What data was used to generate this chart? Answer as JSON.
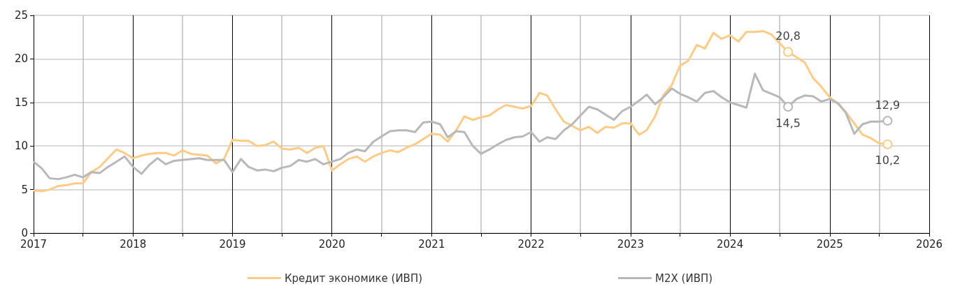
{
  "chart_data": {
    "type": "line",
    "x": [
      "2017-01",
      "2017-02",
      "2017-03",
      "2017-04",
      "2017-05",
      "2017-06",
      "2017-07",
      "2017-08",
      "2017-09",
      "2017-10",
      "2017-11",
      "2017-12",
      "2018-01",
      "2018-02",
      "2018-03",
      "2018-04",
      "2018-05",
      "2018-06",
      "2018-07",
      "2018-08",
      "2018-09",
      "2018-10",
      "2018-11",
      "2018-12",
      "2019-01",
      "2019-02",
      "2019-03",
      "2019-04",
      "2019-05",
      "2019-06",
      "2019-07",
      "2019-08",
      "2019-09",
      "2019-10",
      "2019-11",
      "2019-12",
      "2020-01",
      "2020-02",
      "2020-03",
      "2020-04",
      "2020-05",
      "2020-06",
      "2020-07",
      "2020-08",
      "2020-09",
      "2020-10",
      "2020-11",
      "2020-12",
      "2021-01",
      "2021-02",
      "2021-03",
      "2021-04",
      "2021-05",
      "2021-06",
      "2021-07",
      "2021-08",
      "2021-09",
      "2021-10",
      "2021-11",
      "2021-12",
      "2022-01",
      "2022-02",
      "2022-03",
      "2022-04",
      "2022-05",
      "2022-06",
      "2022-07",
      "2022-08",
      "2022-09",
      "2022-10",
      "2022-11",
      "2022-12",
      "2023-01",
      "2023-02",
      "2023-03",
      "2023-04",
      "2023-05",
      "2023-06",
      "2023-07",
      "2023-08",
      "2023-09",
      "2023-10",
      "2023-11",
      "2023-12",
      "2024-01",
      "2024-02",
      "2024-03",
      "2024-04",
      "2024-05",
      "2024-06",
      "2024-07",
      "2024-08",
      "2024-09",
      "2024-10",
      "2024-11",
      "2024-12",
      "2025-01",
      "2025-02",
      "2025-03",
      "2025-04",
      "2025-05",
      "2025-06",
      "2025-07",
      "2025-08"
    ],
    "series": [
      {
        "name": "Кредит экономике (ИВП)",
        "color": "#fecb84",
        "values": [
          4.9,
          4.8,
          5.0,
          5.4,
          5.5,
          5.7,
          5.7,
          7.0,
          7.6,
          8.6,
          9.6,
          9.2,
          8.6,
          8.9,
          9.1,
          9.2,
          9.2,
          8.9,
          9.5,
          9.1,
          9.0,
          8.9,
          8.0,
          8.5,
          10.7,
          10.6,
          10.6,
          10.0,
          10.1,
          10.5,
          9.7,
          9.6,
          9.8,
          9.2,
          9.8,
          10.0,
          7.2,
          7.9,
          8.5,
          8.8,
          8.2,
          8.8,
          9.2,
          9.5,
          9.3,
          9.8,
          10.2,
          10.8,
          11.4,
          11.3,
          10.5,
          11.8,
          13.4,
          13.0,
          13.3,
          13.5,
          14.2,
          14.7,
          14.5,
          14.3,
          14.6,
          16.1,
          15.8,
          14.2,
          12.8,
          12.3,
          11.8,
          12.2,
          11.5,
          12.2,
          12.1,
          12.6,
          12.6,
          11.3,
          11.8,
          13.4,
          15.8,
          17.0,
          19.2,
          19.8,
          21.6,
          21.2,
          23.0,
          22.3,
          22.7,
          22.0,
          23.1,
          23.1,
          23.2,
          22.8,
          21.8,
          20.8,
          20.2,
          19.6,
          17.8,
          16.8,
          15.6,
          14.8,
          13.9,
          12.6,
          11.3,
          10.9,
          10.3,
          10.2
        ],
        "value_labels": [
          null,
          null,
          null,
          null,
          null,
          null,
          null,
          null,
          null,
          null,
          null,
          null,
          null,
          null,
          null,
          null,
          null,
          null,
          null,
          null,
          null,
          null,
          null,
          null,
          null,
          null,
          null,
          null,
          null,
          null,
          null,
          null,
          null,
          null,
          null,
          null,
          null,
          null,
          null,
          null,
          null,
          null,
          null,
          null,
          null,
          null,
          null,
          null,
          null,
          null,
          null,
          null,
          null,
          null,
          null,
          null,
          null,
          null,
          null,
          null,
          null,
          null,
          null,
          null,
          null,
          null,
          null,
          null,
          null,
          null,
          null,
          null,
          null,
          null,
          null,
          null,
          null,
          null,
          null,
          null,
          null,
          null,
          null,
          null,
          null,
          null,
          null,
          null,
          null,
          null,
          null,
          "20,8",
          null,
          null,
          null,
          null,
          null,
          null,
          null,
          null,
          null,
          null,
          null,
          "10,2"
        ]
      },
      {
        "name": "M2X (ИВП)",
        "color": "#b8b8b8",
        "values": [
          8.2,
          7.4,
          6.3,
          6.2,
          6.4,
          6.7,
          6.4,
          7.0,
          6.9,
          7.6,
          8.2,
          8.8,
          7.6,
          6.8,
          7.8,
          8.6,
          7.9,
          8.3,
          8.4,
          8.5,
          8.6,
          8.4,
          8.4,
          8.4,
          7.0,
          8.5,
          7.6,
          7.2,
          7.3,
          7.1,
          7.5,
          7.7,
          8.4,
          8.2,
          8.5,
          7.9,
          8.2,
          8.5,
          9.2,
          9.6,
          9.4,
          10.5,
          11.1,
          11.7,
          11.8,
          11.8,
          11.6,
          12.7,
          12.8,
          12.5,
          11.0,
          11.7,
          11.6,
          10.0,
          9.1,
          9.6,
          10.2,
          10.7,
          11.0,
          11.1,
          11.6,
          10.5,
          11.0,
          10.8,
          11.8,
          12.5,
          13.5,
          14.5,
          14.2,
          13.6,
          13.0,
          14.0,
          14.5,
          15.2,
          15.9,
          14.8,
          15.6,
          16.6,
          16.0,
          15.6,
          15.1,
          16.1,
          16.3,
          15.6,
          15.0,
          14.7,
          14.4,
          18.3,
          16.4,
          16.0,
          15.6,
          14.5,
          15.4,
          15.8,
          15.7,
          15.1,
          15.4,
          14.9,
          13.8,
          11.4,
          12.5,
          12.8,
          12.8,
          12.9
        ],
        "value_labels": [
          null,
          null,
          null,
          null,
          null,
          null,
          null,
          null,
          null,
          null,
          null,
          null,
          null,
          null,
          null,
          null,
          null,
          null,
          null,
          null,
          null,
          null,
          null,
          null,
          null,
          null,
          null,
          null,
          null,
          null,
          null,
          null,
          null,
          null,
          null,
          null,
          null,
          null,
          null,
          null,
          null,
          null,
          null,
          null,
          null,
          null,
          null,
          null,
          null,
          null,
          null,
          null,
          null,
          null,
          null,
          null,
          null,
          null,
          null,
          null,
          null,
          null,
          null,
          null,
          null,
          null,
          null,
          null,
          null,
          null,
          null,
          null,
          null,
          null,
          null,
          null,
          null,
          null,
          null,
          null,
          null,
          null,
          null,
          null,
          null,
          null,
          null,
          null,
          null,
          null,
          null,
          "14,5",
          null,
          null,
          null,
          null,
          null,
          null,
          null,
          null,
          null,
          null,
          null,
          "12,9"
        ]
      }
    ],
    "xlim": [
      "2017",
      "2026"
    ],
    "xticks": [
      "2017",
      {
        "value": "2017-07",
        "label": null
      },
      "2018",
      {
        "value": "2018-07",
        "label": null
      },
      "2019",
      {
        "value": "2019-07",
        "label": null
      },
      "2020",
      {
        "value": "2020-07",
        "label": null
      },
      "2021",
      {
        "value": "2021-07",
        "label": null
      },
      "2022",
      {
        "value": "2022-07",
        "label": null
      },
      "2023",
      {
        "value": "2023-07",
        "label": null
      },
      "2024",
      {
        "value": "2024-07",
        "label": null
      },
      "2025",
      {
        "value": "2025-07",
        "label": null
      },
      "2026"
    ],
    "ylim": [
      0,
      25
    ],
    "yticks": [
      0,
      5,
      10,
      15,
      20,
      25
    ],
    "grid": true,
    "legend": "bottom"
  }
}
